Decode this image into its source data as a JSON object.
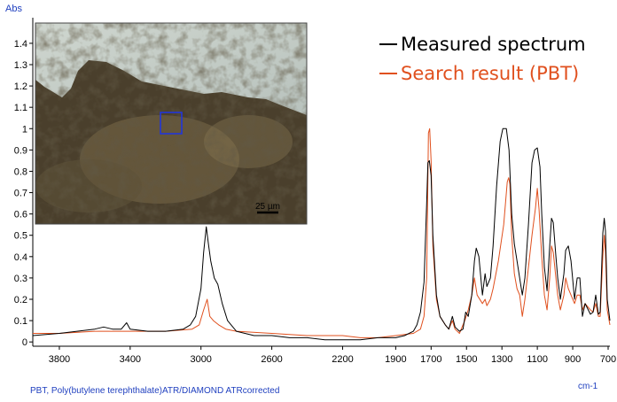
{
  "chart_data": {
    "type": "line",
    "ylabel": "Abs",
    "xlabel": "cm-1",
    "footer": "PBT, Poly(butylene terephthalate)ATR/DIAMOND  ATRcorrected",
    "xlim": [
      3950,
      690
    ],
    "ylim": [
      -0.02,
      1.52
    ],
    "x_ticks": [
      3800,
      3400,
      3000,
      2600,
      2200,
      1900,
      1700,
      1500,
      1300,
      1100,
      900,
      700
    ],
    "y_ticks": [
      0,
      0.1,
      0.2,
      0.3,
      0.4,
      0.5,
      0.6,
      0.7,
      0.8,
      0.9,
      1,
      1.1,
      1.2,
      1.3,
      1.4
    ],
    "grid": false,
    "legend_position": "top-right",
    "inset": {
      "scale_bar_label": "25 µm"
    },
    "series": [
      {
        "name": "Measured spectrum",
        "color": "#000000",
        "points": [
          [
            3950,
            0.03
          ],
          [
            3800,
            0.04
          ],
          [
            3700,
            0.05
          ],
          [
            3600,
            0.06
          ],
          [
            3550,
            0.07
          ],
          [
            3500,
            0.06
          ],
          [
            3450,
            0.06
          ],
          [
            3420,
            0.09
          ],
          [
            3400,
            0.06
          ],
          [
            3300,
            0.05
          ],
          [
            3200,
            0.05
          ],
          [
            3100,
            0.06
          ],
          [
            3060,
            0.08
          ],
          [
            3030,
            0.12
          ],
          [
            3000,
            0.25
          ],
          [
            2985,
            0.42
          ],
          [
            2970,
            0.54
          ],
          [
            2958,
            0.46
          ],
          [
            2945,
            0.38
          ],
          [
            2925,
            0.3
          ],
          [
            2905,
            0.27
          ],
          [
            2880,
            0.18
          ],
          [
            2850,
            0.1
          ],
          [
            2800,
            0.05
          ],
          [
            2700,
            0.03
          ],
          [
            2600,
            0.03
          ],
          [
            2500,
            0.02
          ],
          [
            2400,
            0.02
          ],
          [
            2300,
            0.01
          ],
          [
            2200,
            0.01
          ],
          [
            2100,
            0.01
          ],
          [
            2000,
            0.02
          ],
          [
            1900,
            0.02
          ],
          [
            1850,
            0.03
          ],
          [
            1800,
            0.05
          ],
          [
            1780,
            0.08
          ],
          [
            1760,
            0.14
          ],
          [
            1740,
            0.28
          ],
          [
            1725,
            0.65
          ],
          [
            1718,
            0.84
          ],
          [
            1710,
            0.85
          ],
          [
            1700,
            0.78
          ],
          [
            1690,
            0.5
          ],
          [
            1670,
            0.22
          ],
          [
            1650,
            0.12
          ],
          [
            1620,
            0.08
          ],
          [
            1600,
            0.06
          ],
          [
            1580,
            0.12
          ],
          [
            1565,
            0.07
          ],
          [
            1540,
            0.05
          ],
          [
            1520,
            0.06
          ],
          [
            1505,
            0.14
          ],
          [
            1490,
            0.12
          ],
          [
            1470,
            0.22
          ],
          [
            1455,
            0.38
          ],
          [
            1445,
            0.44
          ],
          [
            1430,
            0.4
          ],
          [
            1410,
            0.22
          ],
          [
            1395,
            0.32
          ],
          [
            1385,
            0.26
          ],
          [
            1365,
            0.3
          ],
          [
            1350,
            0.45
          ],
          [
            1330,
            0.73
          ],
          [
            1310,
            0.94
          ],
          [
            1295,
            1.0
          ],
          [
            1275,
            1.0
          ],
          [
            1260,
            0.9
          ],
          [
            1245,
            0.6
          ],
          [
            1230,
            0.46
          ],
          [
            1215,
            0.38
          ],
          [
            1200,
            0.3
          ],
          [
            1185,
            0.22
          ],
          [
            1170,
            0.3
          ],
          [
            1150,
            0.55
          ],
          [
            1130,
            0.84
          ],
          [
            1115,
            0.9
          ],
          [
            1100,
            0.91
          ],
          [
            1085,
            0.82
          ],
          [
            1075,
            0.6
          ],
          [
            1060,
            0.35
          ],
          [
            1045,
            0.24
          ],
          [
            1030,
            0.45
          ],
          [
            1020,
            0.58
          ],
          [
            1010,
            0.56
          ],
          [
            995,
            0.4
          ],
          [
            985,
            0.3
          ],
          [
            970,
            0.2
          ],
          [
            950,
            0.32
          ],
          [
            940,
            0.43
          ],
          [
            925,
            0.45
          ],
          [
            910,
            0.38
          ],
          [
            890,
            0.2
          ],
          [
            875,
            0.3
          ],
          [
            860,
            0.3
          ],
          [
            845,
            0.12
          ],
          [
            830,
            0.18
          ],
          [
            800,
            0.13
          ],
          [
            785,
            0.14
          ],
          [
            770,
            0.22
          ],
          [
            755,
            0.13
          ],
          [
            745,
            0.14
          ],
          [
            730,
            0.51
          ],
          [
            722,
            0.58
          ],
          [
            715,
            0.52
          ],
          [
            705,
            0.2
          ],
          [
            690,
            0.1
          ]
        ]
      },
      {
        "name": "Search result (PBT)",
        "color": "#e0501e",
        "points": [
          [
            3950,
            0.04
          ],
          [
            3800,
            0.04
          ],
          [
            3600,
            0.05
          ],
          [
            3400,
            0.05
          ],
          [
            3200,
            0.05
          ],
          [
            3050,
            0.06
          ],
          [
            3010,
            0.08
          ],
          [
            2985,
            0.15
          ],
          [
            2965,
            0.2
          ],
          [
            2950,
            0.12
          ],
          [
            2930,
            0.1
          ],
          [
            2900,
            0.08
          ],
          [
            2860,
            0.06
          ],
          [
            2800,
            0.05
          ],
          [
            2600,
            0.04
          ],
          [
            2400,
            0.03
          ],
          [
            2200,
            0.03
          ],
          [
            2100,
            0.02
          ],
          [
            2000,
            0.02
          ],
          [
            1900,
            0.03
          ],
          [
            1800,
            0.04
          ],
          [
            1760,
            0.06
          ],
          [
            1740,
            0.12
          ],
          [
            1725,
            0.3
          ],
          [
            1715,
            0.98
          ],
          [
            1708,
            1.0
          ],
          [
            1700,
            0.85
          ],
          [
            1690,
            0.45
          ],
          [
            1670,
            0.2
          ],
          [
            1650,
            0.12
          ],
          [
            1620,
            0.08
          ],
          [
            1600,
            0.06
          ],
          [
            1580,
            0.1
          ],
          [
            1565,
            0.06
          ],
          [
            1540,
            0.04
          ],
          [
            1510,
            0.1
          ],
          [
            1490,
            0.15
          ],
          [
            1470,
            0.22
          ],
          [
            1455,
            0.3
          ],
          [
            1440,
            0.22
          ],
          [
            1410,
            0.18
          ],
          [
            1395,
            0.2
          ],
          [
            1385,
            0.17
          ],
          [
            1365,
            0.2
          ],
          [
            1350,
            0.25
          ],
          [
            1320,
            0.38
          ],
          [
            1290,
            0.55
          ],
          [
            1270,
            0.75
          ],
          [
            1262,
            0.77
          ],
          [
            1255,
            0.74
          ],
          [
            1245,
            0.5
          ],
          [
            1230,
            0.32
          ],
          [
            1215,
            0.25
          ],
          [
            1200,
            0.22
          ],
          [
            1185,
            0.12
          ],
          [
            1170,
            0.2
          ],
          [
            1150,
            0.35
          ],
          [
            1130,
            0.5
          ],
          [
            1110,
            0.63
          ],
          [
            1100,
            0.72
          ],
          [
            1090,
            0.62
          ],
          [
            1075,
            0.4
          ],
          [
            1060,
            0.22
          ],
          [
            1045,
            0.15
          ],
          [
            1030,
            0.3
          ],
          [
            1020,
            0.45
          ],
          [
            1010,
            0.42
          ],
          [
            995,
            0.3
          ],
          [
            985,
            0.22
          ],
          [
            970,
            0.15
          ],
          [
            950,
            0.22
          ],
          [
            940,
            0.3
          ],
          [
            925,
            0.25
          ],
          [
            910,
            0.22
          ],
          [
            890,
            0.18
          ],
          [
            875,
            0.22
          ],
          [
            860,
            0.22
          ],
          [
            845,
            0.15
          ],
          [
            830,
            0.18
          ],
          [
            800,
            0.15
          ],
          [
            785,
            0.14
          ],
          [
            770,
            0.18
          ],
          [
            755,
            0.12
          ],
          [
            745,
            0.12
          ],
          [
            730,
            0.4
          ],
          [
            722,
            0.5
          ],
          [
            715,
            0.42
          ],
          [
            705,
            0.15
          ],
          [
            690,
            0.08
          ]
        ]
      }
    ]
  }
}
